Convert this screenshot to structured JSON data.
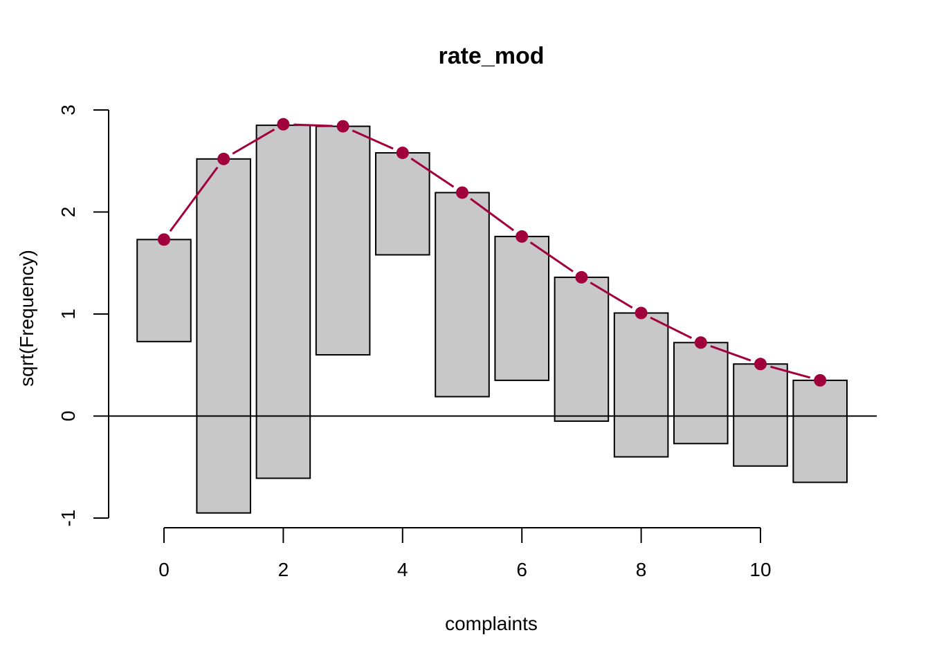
{
  "chart_data": {
    "type": "bar",
    "title": "rate_mod",
    "xlabel": "complaints",
    "ylabel": "sqrt(Frequency)",
    "x": [
      0,
      1,
      2,
      3,
      4,
      5,
      6,
      7,
      8,
      9,
      10,
      11
    ],
    "bars": {
      "top": [
        1.73,
        2.52,
        2.85,
        2.84,
        2.58,
        2.19,
        1.76,
        1.36,
        1.01,
        0.72,
        0.51,
        0.35
      ],
      "bottom": [
        0.73,
        -0.95,
        -0.61,
        0.6,
        1.58,
        0.19,
        0.35,
        -0.05,
        -0.4,
        -0.27,
        -0.49,
        -0.65
      ]
    },
    "expected_line": {
      "x": [
        0,
        1,
        2,
        3,
        4,
        5,
        6,
        7,
        8,
        9,
        10,
        11
      ],
      "y": [
        1.73,
        2.52,
        2.86,
        2.84,
        2.58,
        2.19,
        1.76,
        1.36,
        1.01,
        0.72,
        0.51,
        0.35
      ]
    },
    "xlim": [
      -0.95,
      11.95
    ],
    "ylim": [
      -1,
      3
    ],
    "xticks": [
      0,
      2,
      4,
      6,
      8,
      10
    ],
    "yticks": [
      -1,
      0,
      1,
      2,
      3
    ],
    "reference_line_y": 0,
    "grid": false,
    "colors": {
      "bar_fill": "#C8C8C8",
      "bar_stroke": "#000000",
      "line": "#A0003C"
    }
  }
}
